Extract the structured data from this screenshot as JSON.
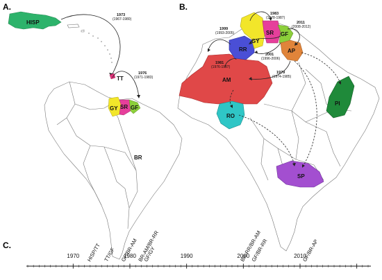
{
  "panels": {
    "a": "A.",
    "b": "B.",
    "c": "C."
  },
  "map_a": {
    "regions": [
      "HISP",
      "TT",
      "GY",
      "SR",
      "GF",
      "BR"
    ],
    "arrows": [
      {
        "year": "1973",
        "range": "(1967-1980)"
      },
      {
        "year": "1976",
        "range": "(1971-1983)"
      }
    ]
  },
  "map_b": {
    "regions": [
      "GY",
      "SR",
      "GF",
      "AP",
      "RR",
      "AM",
      "RO",
      "PI",
      "SP"
    ],
    "arrows": [
      {
        "year": "1983",
        "range": "(1978-1987)"
      },
      {
        "year": "2011",
        "range": "(2008-2012)"
      },
      {
        "year": "1999",
        "range": "(1993-2005)"
      },
      {
        "year": "2001",
        "range": "(1996-2006)"
      },
      {
        "year": "1981",
        "range": "(1976-1987)"
      },
      {
        "year": "1979",
        "range": "(1974-1985)"
      }
    ]
  },
  "timeline": {
    "ticks": [
      "1970",
      "1980",
      "1990",
      "2000",
      "2010"
    ],
    "events": [
      "HISP/TT",
      "TT/GF",
      "GF/BR-AM",
      "BR-AM/BR-RR",
      "GF/GY",
      "BR-RR/BR-AM",
      "GF/BR-RR",
      "GF/BR-AP"
    ]
  },
  "colors": {
    "HISP": "#2db36b",
    "TT": "#e0337a",
    "GY": "#f2e62a",
    "SR": "#e63f9b",
    "GF": "#8ccf3a",
    "AP": "#e0843a",
    "RR": "#4a4fd6",
    "AM": "#e04848",
    "RO": "#2fc6c6",
    "PI": "#1f8a3a",
    "SP": "#a34fd0"
  }
}
